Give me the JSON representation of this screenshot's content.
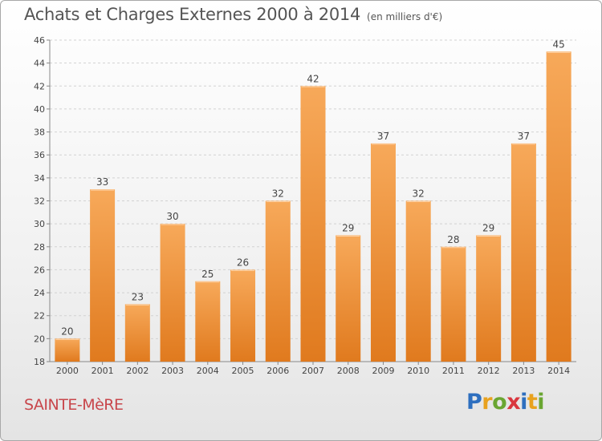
{
  "header": {
    "title": "Achats et Charges Externes 2000 à 2014",
    "subtitle": "(en milliers d'€)"
  },
  "footer": {
    "commune": "SAINTE-MèRE",
    "logo_letters": [
      "P",
      "r",
      "o",
      "x",
      "i",
      "t",
      "i"
    ],
    "logo_colors": [
      "#2e6fbf",
      "#e8a21f",
      "#6aa632",
      "#d9363e",
      "#2e6fbf",
      "#e8a21f",
      "#6aa632"
    ]
  },
  "chart_data": {
    "type": "bar",
    "categories": [
      "2000",
      "2001",
      "2002",
      "2003",
      "2004",
      "2005",
      "2006",
      "2007",
      "2008",
      "2009",
      "2010",
      "2011",
      "2012",
      "2013",
      "2014"
    ],
    "values": [
      20,
      33,
      23,
      30,
      25,
      26,
      32,
      42,
      29,
      37,
      32,
      28,
      29,
      37,
      45
    ],
    "ylim": [
      18,
      46
    ],
    "yticks": [
      18,
      20,
      22,
      24,
      26,
      28,
      30,
      32,
      34,
      36,
      38,
      40,
      42,
      44,
      46
    ],
    "grid": "horizontal dashed",
    "bar_color_top": "#f7a95a",
    "bar_color_bottom": "#e07a1e"
  }
}
